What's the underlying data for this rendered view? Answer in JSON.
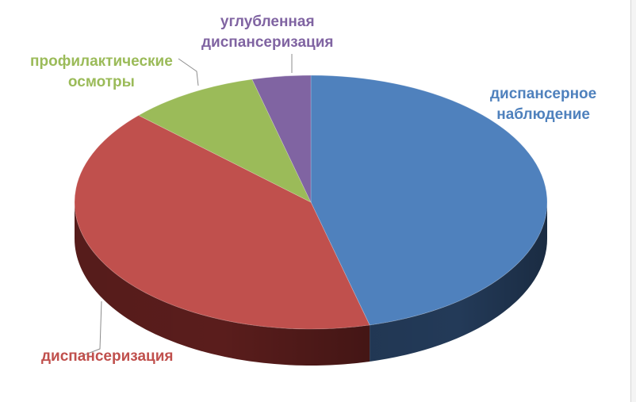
{
  "chart_data": {
    "type": "pie",
    "title": "",
    "slices": [
      {
        "name": "диспансерное наблюдение",
        "value": 46,
        "color": "#4f81bd",
        "dark": "#233a58"
      },
      {
        "name": "диспансеризация",
        "value": 41,
        "color": "#c0504d",
        "dark": "#5a1d1c"
      },
      {
        "name": "профилактические осмотры",
        "value": 9,
        "color": "#9bbb59",
        "dark": "#4b5e26"
      },
      {
        "name": "углубленная диспансеризация",
        "value": 4,
        "color": "#8064a2",
        "dark": "#3c2c50"
      }
    ],
    "labels": {
      "s0": {
        "line1": "диспансерное",
        "line2": "наблюдение"
      },
      "s1": {
        "line1": "диспансеризация"
      },
      "s2": {
        "line1": "профилактические",
        "line2": "осмотры"
      },
      "s3": {
        "line1": "углубленная",
        "line2": "диспансеризация"
      }
    },
    "legend": "none",
    "data_labels": "category names",
    "style": "3d"
  }
}
